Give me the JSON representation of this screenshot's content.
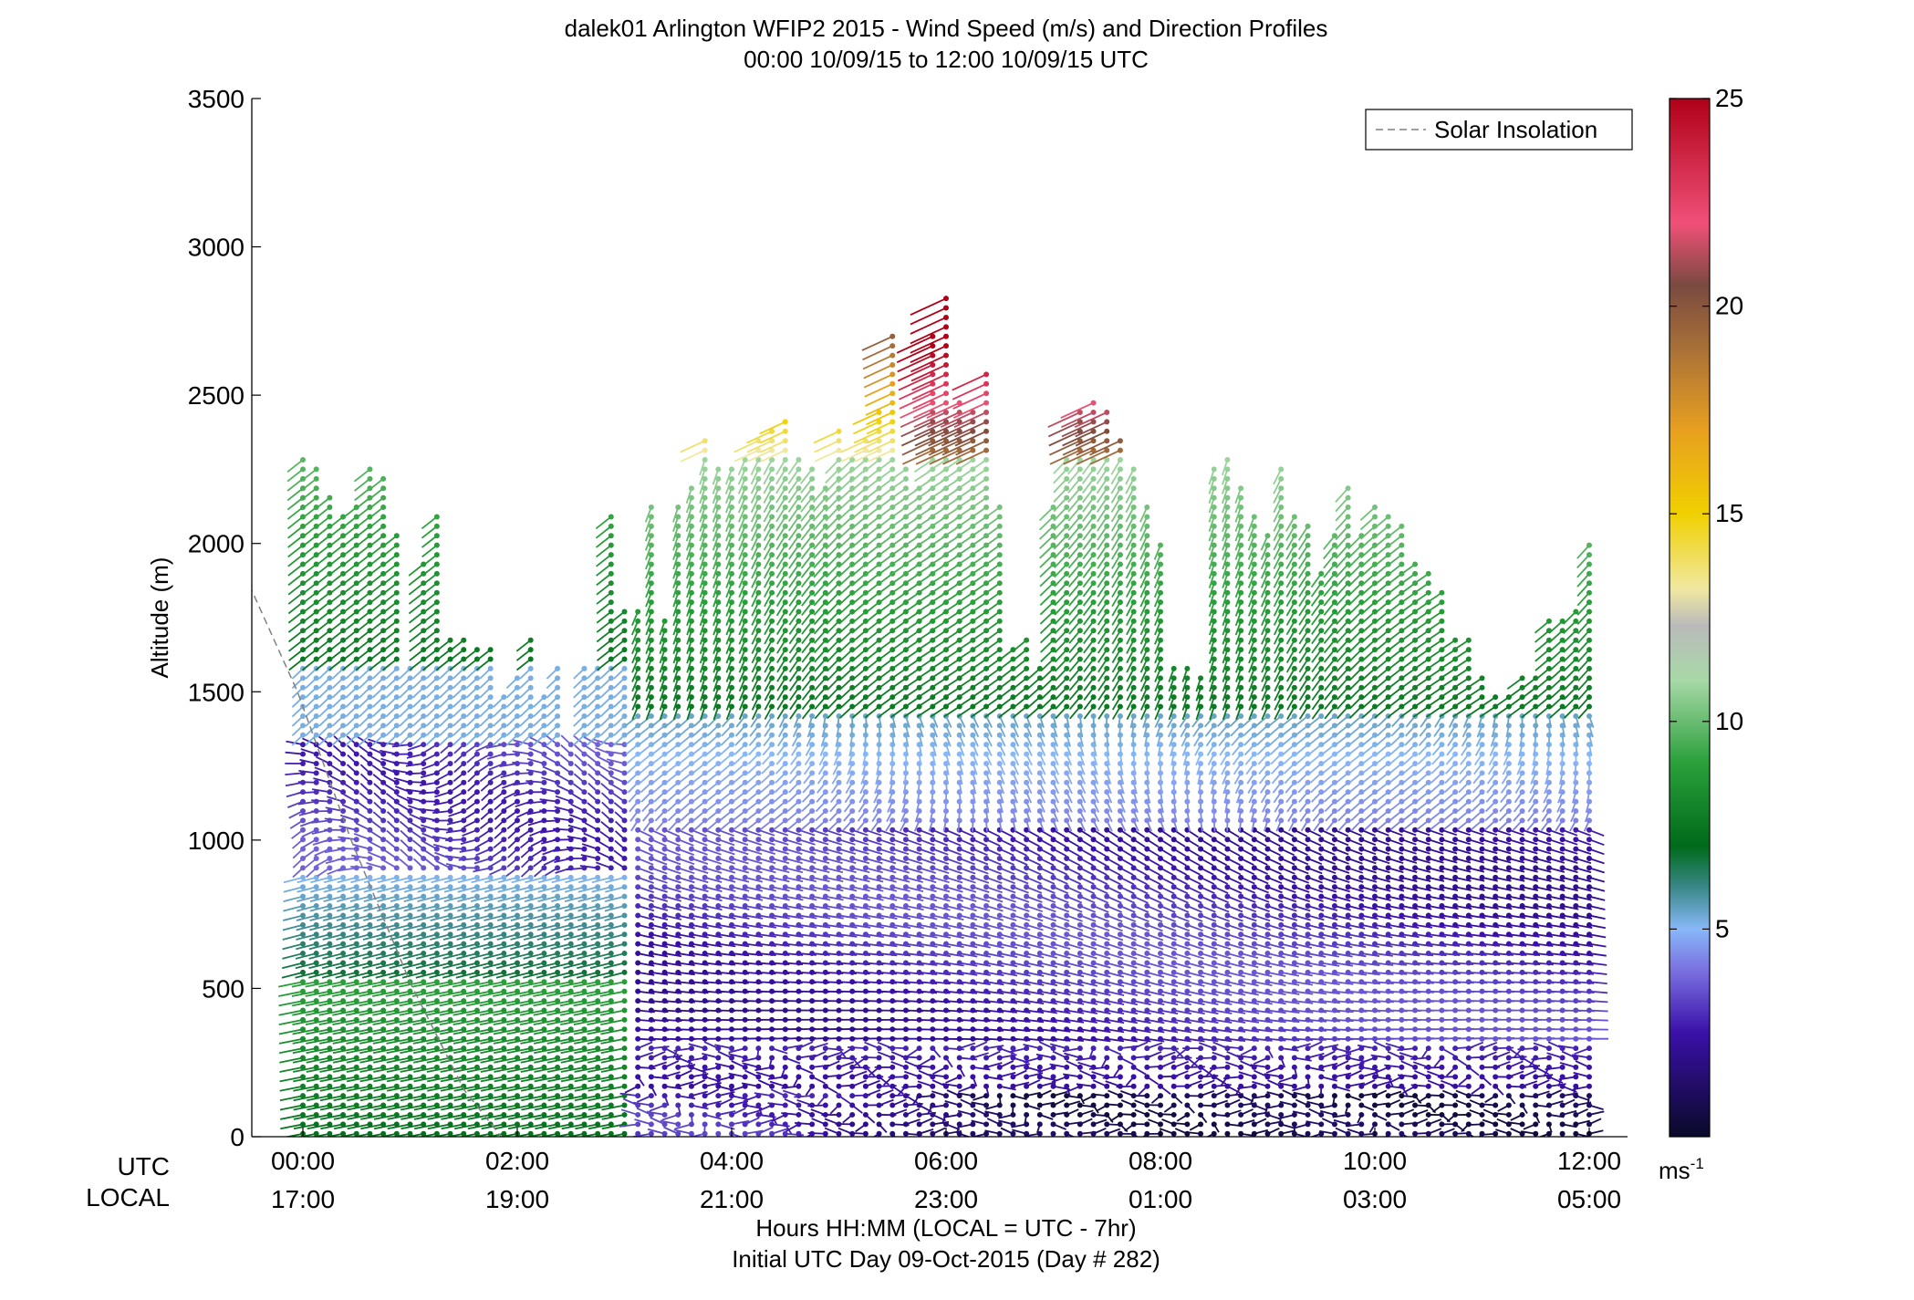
{
  "chart_data": {
    "type": "scatter",
    "title": "dalek01 Arlington WFIP2 2015 - Wind Speed (m/s) and Direction Profiles",
    "subtitle": "00:00 10/09/15 to 12:00 10/09/15  UTC",
    "ylabel": "Altitude (m)",
    "xlabel": "Hours HH:MM  (LOCAL = UTC - 7hr)",
    "xlabel2": "Initial UTC Day 09-Oct-2015 (Day # 282)",
    "row_labels": {
      "utc": "UTC",
      "local": "LOCAL"
    },
    "ylim": [
      0,
      3500
    ],
    "xlim_hours": [
      -0.5,
      12.4
    ],
    "y_ticks": [
      0,
      500,
      1000,
      1500,
      2000,
      2500,
      3000,
      3500
    ],
    "x_ticks_utc": [
      "00:00",
      "02:00",
      "04:00",
      "06:00",
      "08:00",
      "10:00",
      "12:00"
    ],
    "x_ticks_local": [
      "17:00",
      "19:00",
      "21:00",
      "23:00",
      "01:00",
      "03:00",
      "05:00"
    ],
    "x_tick_hours": [
      0,
      2,
      4,
      6,
      8,
      10,
      12
    ],
    "legend": {
      "label": "Solar Insolation",
      "position": "top-right",
      "line_color": "#808080"
    },
    "colorbar": {
      "range": [
        0,
        25
      ],
      "ticks": [
        5,
        10,
        15,
        20,
        25
      ],
      "unit_base": "ms",
      "unit_exp": "-1",
      "stops": [
        {
          "v": 0,
          "c": "#0a0a28"
        },
        {
          "v": 2.5,
          "c": "#3a10a8"
        },
        {
          "v": 4,
          "c": "#7a70e0"
        },
        {
          "v": 5,
          "c": "#88b8f8"
        },
        {
          "v": 6,
          "c": "#3a8888"
        },
        {
          "v": 7,
          "c": "#006a1a"
        },
        {
          "v": 9,
          "c": "#2aa03a"
        },
        {
          "v": 11,
          "c": "#a8d8a8"
        },
        {
          "v": 12.3,
          "c": "#bababa"
        },
        {
          "v": 13.2,
          "c": "#f0e8a0"
        },
        {
          "v": 15,
          "c": "#f0d000"
        },
        {
          "v": 17,
          "c": "#e8a020"
        },
        {
          "v": 19,
          "c": "#a87038"
        },
        {
          "v": 20.5,
          "c": "#7a4a40"
        },
        {
          "v": 22,
          "c": "#f05078"
        },
        {
          "v": 25,
          "c": "#b00018"
        }
      ]
    },
    "solar_insolation": [
      {
        "t": -0.5,
        "alt": 1860
      },
      {
        "t": -0.05,
        "alt": 1500
      },
      {
        "t": 0.45,
        "alt": 1000
      },
      {
        "t": 1.0,
        "alt": 520
      },
      {
        "t": 1.5,
        "alt": 160
      },
      {
        "t": 1.85,
        "alt": 0
      }
    ],
    "profiles": {
      "times": [
        0,
        0.125,
        0.25,
        0.375,
        0.5,
        0.625,
        0.75,
        0.875,
        1.0,
        1.125,
        1.25,
        1.375,
        1.5,
        1.625,
        1.75,
        1.875,
        2.0,
        2.125,
        2.25,
        2.375,
        2.5,
        2.625,
        2.75,
        2.875,
        3.0,
        3.125,
        3.25,
        3.375,
        3.5,
        3.625,
        3.75,
        3.875,
        4.0,
        4.125,
        4.25,
        4.375,
        4.5,
        4.625,
        4.75,
        4.875,
        5.0,
        5.125,
        5.25,
        5.375,
        5.5,
        5.625,
        5.75,
        5.875,
        6.0,
        6.125,
        6.25,
        6.375,
        6.5,
        6.625,
        6.75,
        6.875,
        7.0,
        7.125,
        7.25,
        7.375,
        7.5,
        7.625,
        7.75,
        7.875,
        8.0,
        8.125,
        8.25,
        8.375,
        8.5,
        8.625,
        8.75,
        8.875,
        9.0,
        9.125,
        9.25,
        9.375,
        9.5,
        9.625,
        9.75,
        9.875,
        10.0,
        10.125,
        10.25,
        10.375,
        10.5,
        10.625,
        10.75,
        10.875,
        11.0,
        11.125,
        11.25,
        11.375,
        11.5,
        11.625,
        11.75,
        11.875,
        12.0
      ],
      "top_altitudes": [
        2300,
        2280,
        2180,
        2100,
        2150,
        2250,
        2220,
        2050,
        1600,
        1950,
        2100,
        1700,
        1700,
        1650,
        1650,
        1500,
        1550,
        1700,
        1500,
        1580,
        1350,
        1600,
        1600,
        2100,
        1800,
        1780,
        2150,
        1750,
        2150,
        2200,
        2350,
        2280,
        2250,
        2300,
        2350,
        2400,
        2420,
        2300,
        2250,
        2200,
        2400,
        2300,
        2350,
        2450,
        2700,
        2250,
        2200,
        2700,
        2850,
        2500,
        2450,
        2600,
        2150,
        1650,
        1700,
        1600,
        2150,
        2300,
        2450,
        2500,
        2450,
        2350,
        2250,
        2150,
        2000,
        1600,
        1600,
        1550,
        2250,
        2300,
        2200,
        2100,
        2050,
        2250,
        2100,
        2080,
        1900,
        2050,
        2200,
        2050,
        2150,
        2100,
        2080,
        1950,
        1900,
        1850,
        1700,
        1700,
        1550,
        1500,
        1500,
        1550,
        1550,
        1750,
        1750,
        1800,
        2000
      ],
      "dot_spacing_m": 32
    }
  }
}
